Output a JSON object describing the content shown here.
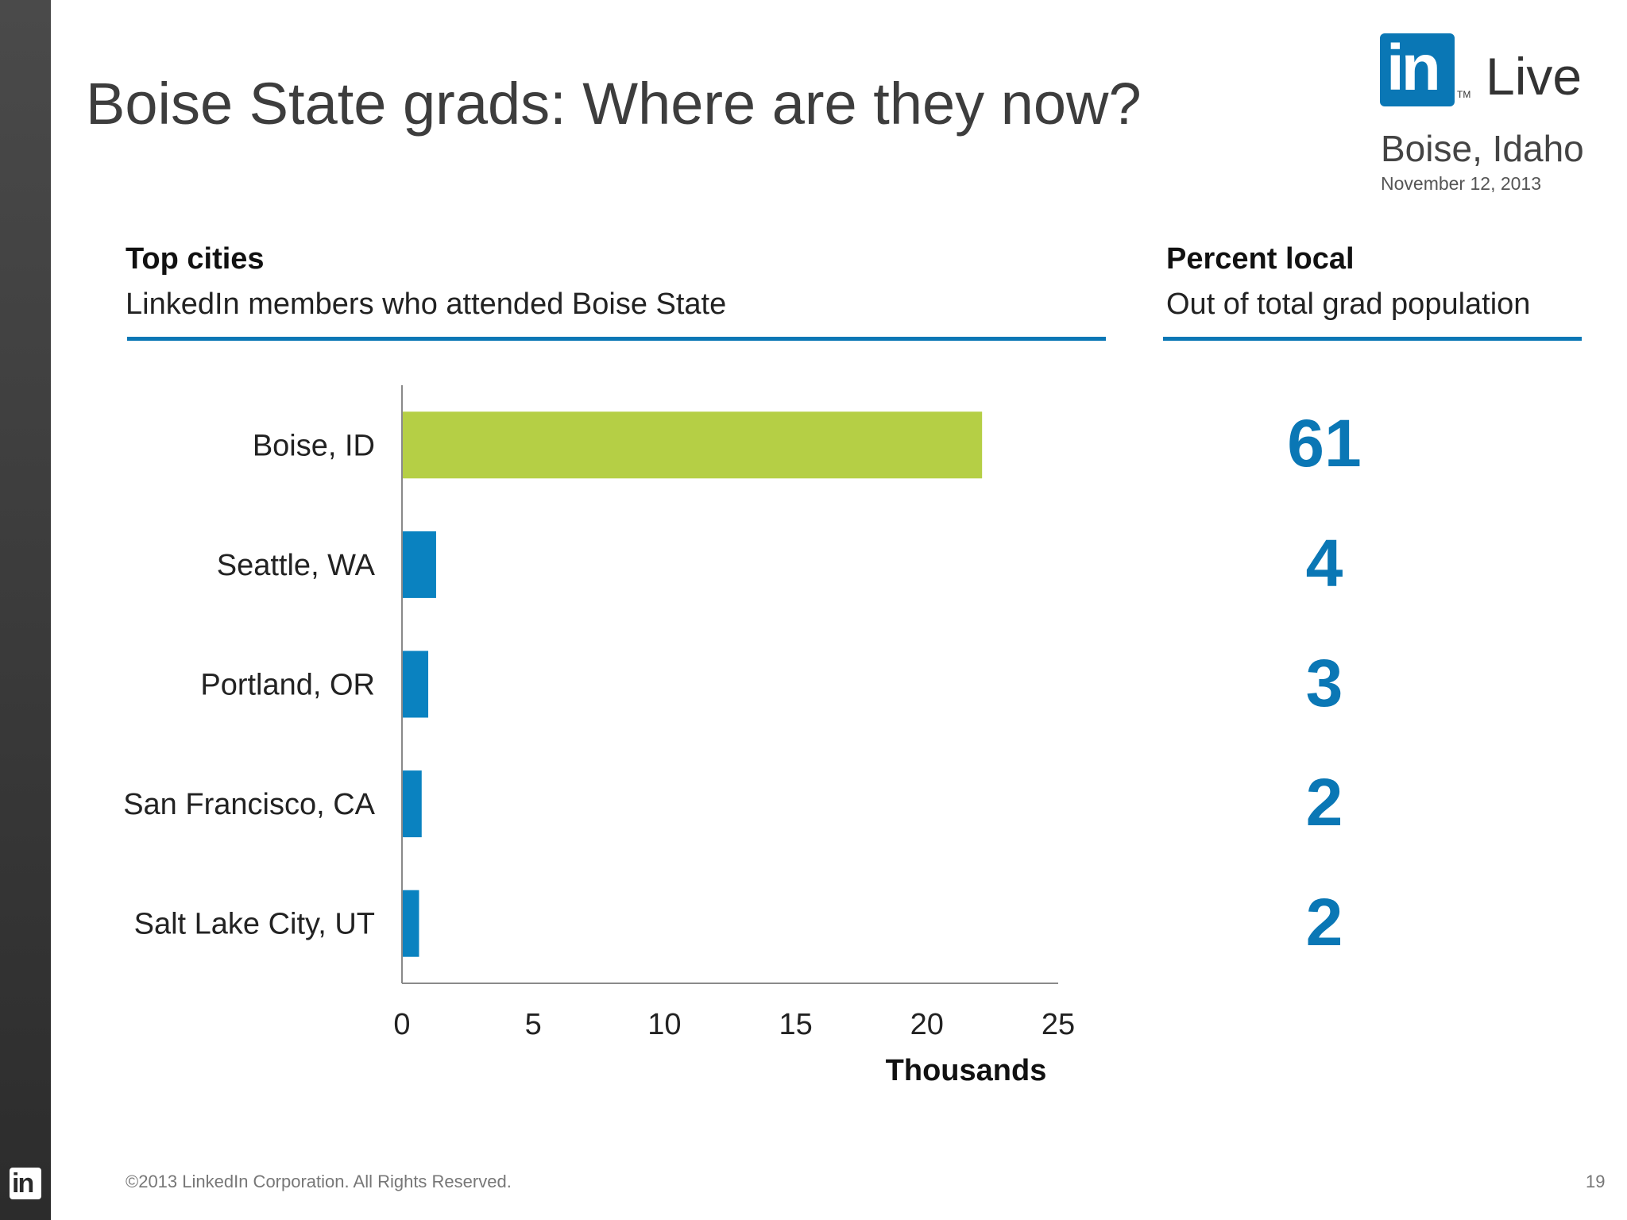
{
  "slide": {
    "title": "Boise State grads: Where are they now?",
    "footer": "©2013 LinkedIn Corporation. All Rights Reserved.",
    "page_number": "19"
  },
  "logo": {
    "mark": "in",
    "tm": "TM",
    "live": "Live",
    "city": "Boise, Idaho",
    "date": "November 12, 2013"
  },
  "left_section": {
    "heading": "Top cities",
    "subheading": "LinkedIn members who attended Boise State"
  },
  "right_section": {
    "heading": "Percent local",
    "subheading": "Out of total grad population",
    "values": [
      "61",
      "4",
      "3",
      "2",
      "2"
    ]
  },
  "chart_data": {
    "type": "bar",
    "orientation": "horizontal",
    "categories": [
      "Boise, ID",
      "Seattle, WA",
      "Portland, OR",
      "San Francisco, CA",
      "Salt Lake City, UT"
    ],
    "values": [
      22.1,
      1.3,
      1.0,
      0.75,
      0.65
    ],
    "xlabel": "Thousands",
    "xlim": [
      0,
      25
    ],
    "xticks": [
      "0",
      "5",
      "10",
      "15",
      "20",
      "25"
    ],
    "grid": false,
    "colors": [
      "#b5cf45",
      "#0a82c0",
      "#0a82c0",
      "#0a82c0",
      "#0a82c0"
    ]
  }
}
